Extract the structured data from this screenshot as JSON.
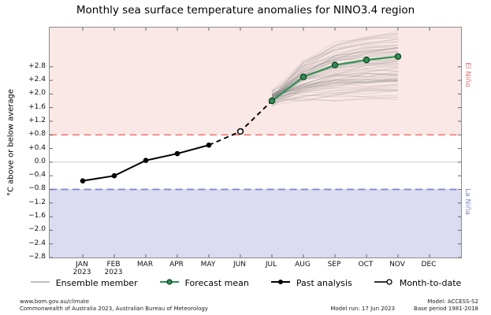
{
  "title": "Monthly sea surface temperature anomalies for NINO3.4 region",
  "chart_data": {
    "type": "line",
    "title": "Monthly sea surface temperature anomalies for NINO3.4 region",
    "ylabel": "°C above or below average",
    "ylim": [
      -2.8,
      3.95
    ],
    "grid": false,
    "zero_line": 0.0,
    "legend_position": "bottom",
    "ytick_values": [
      2.8,
      2.4,
      2.0,
      1.6,
      1.2,
      0.8,
      0.4,
      0.0,
      -0.4,
      -0.8,
      -1.2,
      -1.6,
      -2.0,
      -2.4,
      -2.8
    ],
    "ytick_labels": [
      "+2.8",
      "+2.4",
      "+2.0",
      "+1.6",
      "+1.2",
      "+0.8",
      "+0.4",
      "0.0",
      "−0.4",
      "−0.8",
      "−1.2",
      "−1.6",
      "−2.0",
      "−2.4",
      "−2.8"
    ],
    "months": [
      {
        "label": "JAN",
        "year": "2023"
      },
      {
        "label": "FEB",
        "year": "2023"
      },
      {
        "label": "MAR"
      },
      {
        "label": "APR"
      },
      {
        "label": "MAY"
      },
      {
        "label": "JUN"
      },
      {
        "label": "JUL"
      },
      {
        "label": "AUG"
      },
      {
        "label": "SEP"
      },
      {
        "label": "OCT"
      },
      {
        "label": "NOV"
      },
      {
        "label": "DEC"
      }
    ],
    "bands": {
      "el_nino": {
        "threshold": 0.8,
        "label": "El Niño"
      },
      "la_nina": {
        "threshold": -0.8,
        "label": "La Niña"
      }
    },
    "series": [
      {
        "name": "Past analysis",
        "kind": "past",
        "x": [
          "JAN",
          "FEB",
          "MAR",
          "APR",
          "MAY"
        ],
        "values": [
          -0.55,
          -0.4,
          0.05,
          0.25,
          0.5
        ]
      },
      {
        "name": "Month-to-date",
        "kind": "month_to_date",
        "x": [
          "JUN"
        ],
        "values": [
          0.9
        ]
      },
      {
        "name": "Forecast mean",
        "kind": "forecast",
        "x": [
          "JUL",
          "AUG",
          "SEP",
          "OCT",
          "NOV"
        ],
        "values": [
          1.8,
          2.5,
          2.85,
          3.0,
          3.1
        ]
      },
      {
        "name": "Ensemble member",
        "kind": "ensemble",
        "x": [
          "JUL",
          "AUG",
          "SEP",
          "OCT",
          "NOV"
        ],
        "count": 78,
        "start_range": [
          1.62,
          2.12
        ],
        "end_range": [
          1.6,
          3.85
        ]
      }
    ]
  },
  "legend": {
    "items": [
      {
        "label": "Ensemble member"
      },
      {
        "label": "Forecast mean"
      },
      {
        "label": "Past analysis"
      },
      {
        "label": "Month-to-date"
      }
    ]
  },
  "footer": {
    "url": "www.bom.gov.au/climate",
    "copyright": "Commonwealth of Australia 2023, Australian Bureau of Meteorology",
    "model": "Model: ACCESS-S2",
    "model_run": "Model run: 17 Jun 2023",
    "base_period": "Base period 1981-2018"
  },
  "colors": {
    "el_nino_band": "#fae8e6",
    "la_nina_band": "#dbdbf1",
    "el_nino_dash": "#f4827f",
    "la_nina_dash": "#8183cf",
    "el_nino_text": "#e0716e",
    "la_nina_text": "#8184c9",
    "forecast_green": "#2a9150",
    "past_black": "#000000",
    "ensemble_gray": "#969696",
    "zero_line": "#c9c9c9",
    "axis": "#8c8c8c"
  }
}
